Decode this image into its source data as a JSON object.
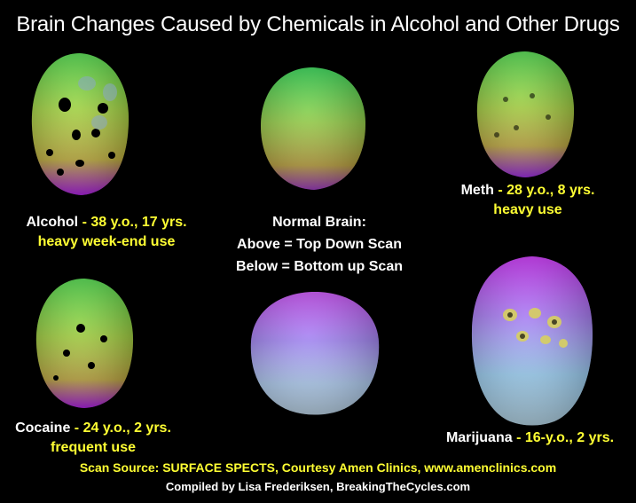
{
  "title": "Brain Changes Caused by Chemicals in Alcohol and Other Drugs",
  "center": {
    "line1": "Normal Brain:",
    "line2": "Above = Top Down Scan",
    "line3": "Below = Bottom up Scan"
  },
  "panels": {
    "alcohol": {
      "name": "Alcohol",
      "detail": "- 38 y.o., 17 yrs.",
      "detail2": "heavy week-end use"
    },
    "meth": {
      "name": "Meth",
      "detail": "- 28  y.o., 8 yrs.",
      "detail2": "heavy use"
    },
    "cocaine": {
      "name": "Cocaine",
      "detail": "- 24 y.o., 2 yrs.",
      "detail2": "frequent use"
    },
    "marijuana": {
      "name": "Marijuana",
      "detail": "- 16-y.o., 2 yrs."
    }
  },
  "source": "Scan Source: SURFACE SPECTS, Courtesy Amen Clinics, www.amenclinics.com",
  "compiled": "Compiled by Lisa Frederiksen, BreakingTheCycles.com",
  "colors": {
    "background": "#000000",
    "text": "#ffffff",
    "highlight": "#ffff33"
  }
}
